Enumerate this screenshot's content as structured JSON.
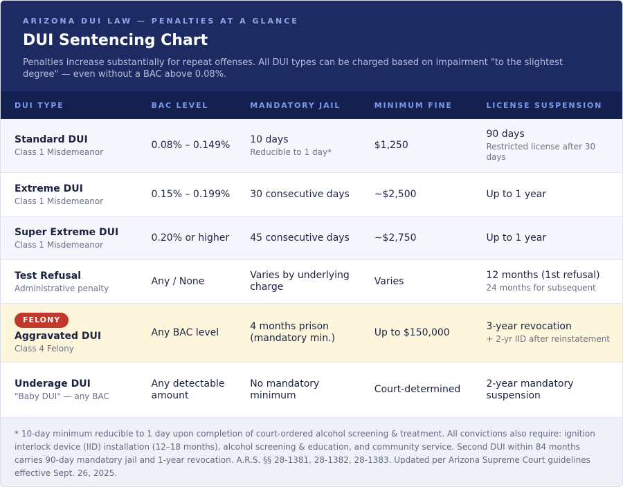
{
  "header": {
    "eyebrow": "ARIZONA DUI LAW — PENALTIES AT A GLANCE",
    "title": "DUI Sentencing Chart",
    "subtitle": "Penalties increase substantially for repeat offenses. All DUI types can be charged based on impairment \"to the slightest degree\" — even without a BAC above 0.08%."
  },
  "columns": [
    "DUI TYPE",
    "BAC LEVEL",
    "MANDATORY JAIL",
    "MINIMUM FINE",
    "LICENSE SUSPENSION"
  ],
  "rows": [
    {
      "type": "Standard DUI",
      "type_note": "Class 1 Misdemeanor",
      "bac": "0.08% – 0.149%",
      "jail": "10 days",
      "jail_note": "Reducible to 1 day*",
      "fine": "$1,250",
      "license": "90 days",
      "license_note": "Restricted license after 30 days"
    },
    {
      "type": "Extreme DUI",
      "type_note": "Class 1 Misdemeanor",
      "bac": "0.15% – 0.199%",
      "jail": "30 consecutive days",
      "fine": "~$2,500",
      "license": "Up to 1 year"
    },
    {
      "type": "Super Extreme DUI",
      "type_note": "Class 1 Misdemeanor",
      "bac": "0.20% or higher",
      "jail": "45 consecutive days",
      "fine": "~$2,750",
      "license": "Up to 1 year"
    },
    {
      "type": "Test Refusal",
      "type_note": "Administrative penalty",
      "bac": "Any / None",
      "jail": "Varies by underlying charge",
      "fine": "Varies",
      "license": "12 months (1st refusal)",
      "license_note": "24 months for subsequent"
    },
    {
      "badge": "FELONY",
      "type": "Aggravated DUI",
      "type_note": "Class 4 Felony",
      "bac": "Any BAC level",
      "jail": "4 months prison (mandatory min.)",
      "fine": "Up to $150,000",
      "license": "3-year revocation",
      "license_note": "+ 2-yr IID after reinstatement"
    },
    {
      "type": "Underage DUI",
      "type_note": "\"Baby DUI\" — any BAC",
      "bac": "Any detectable amount",
      "jail": "No mandatory minimum",
      "fine": "Court-determined",
      "license": "2-year mandatory suspension"
    }
  ],
  "colors": {
    "header_bg": "#1e2b63",
    "table_head_bg": "#142050",
    "accent": "#7d98e8",
    "felony_row_bg": "#fdf6dd",
    "felony_badge": "#c0392b"
  },
  "footer": {
    "note": "* 10-day minimum reducible to 1 day upon completion of court-ordered alcohol screening & treatment. All convictions also require: ignition interlock device (IID) installation (12–18 months), alcohol screening & education, and community service. Second DUI within 84 months carries 90-day mandatory jail and 1-year revocation. A.R.S. §§ 28-1381, 28-1382, 28-1383. Updated per Arizona Supreme Court guidelines effective Sept. 26, 2025."
  }
}
